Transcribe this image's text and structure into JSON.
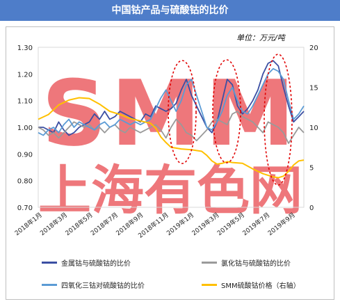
{
  "header": {
    "title": "中国钴产品与硫酸钴的比价"
  },
  "chart_data": {
    "type": "line",
    "unit_note": "单位：万元/吨",
    "x_ticks": [
      "2018年1月",
      "2018年3月",
      "2018年5月",
      "2018年7月",
      "2018年9月",
      "2018年11月",
      "2019年1月",
      "2019年3月",
      "2019年5月",
      "2019年7月",
      "2019年9月"
    ],
    "y_left": {
      "ylim": [
        0.7,
        1.3
      ],
      "ticks": [
        "0.70",
        "0.80",
        "0.90",
        "1.00",
        "1.10",
        "1.20",
        "1.30"
      ]
    },
    "y_right": {
      "ylim": [
        0,
        20
      ],
      "ticks": [
        "0",
        "5",
        "10",
        "15",
        "20"
      ]
    },
    "watermark": {
      "top": "SMM",
      "bottom": "上海有色网"
    },
    "series": [
      {
        "name": "金属钴与硫酸钴的比价",
        "color": "#3b4fa3",
        "axis": "left",
        "points": [
          [
            0,
            1.0
          ],
          [
            1,
            1.0
          ],
          [
            2,
            0.99
          ],
          [
            3,
            0.98
          ],
          [
            4,
            1.02
          ],
          [
            5,
            0.99
          ],
          [
            6,
            0.97
          ],
          [
            7,
            0.98
          ],
          [
            8,
            1.0
          ],
          [
            9,
            1.01
          ],
          [
            10,
            1.02
          ],
          [
            11,
            1.05
          ],
          [
            12,
            1.03
          ],
          [
            13,
            1.06
          ],
          [
            14,
            1.03
          ],
          [
            15,
            1.04
          ],
          [
            16,
            1.06
          ],
          [
            17,
            1.05
          ],
          [
            18,
            1.04
          ],
          [
            19,
            1.03
          ],
          [
            20,
            1.02
          ],
          [
            21,
            1.05
          ],
          [
            22,
            1.04
          ],
          [
            23,
            1.08
          ],
          [
            24,
            1.07
          ],
          [
            25,
            1.06
          ],
          [
            26,
            1.07
          ],
          [
            27,
            1.09
          ],
          [
            28,
            1.14
          ],
          [
            29,
            1.18
          ],
          [
            30,
            1.12
          ],
          [
            31,
            1.08
          ],
          [
            32,
            1.04
          ],
          [
            33,
            1.0
          ],
          [
            34,
            0.98
          ],
          [
            35,
            1.02
          ],
          [
            36,
            1.1
          ],
          [
            37,
            1.18
          ],
          [
            38,
            1.16
          ],
          [
            39,
            1.08
          ],
          [
            40,
            1.05
          ],
          [
            41,
            1.07
          ],
          [
            42,
            1.1
          ],
          [
            43,
            1.14
          ],
          [
            44,
            1.2
          ],
          [
            45,
            1.24
          ],
          [
            46,
            1.25
          ],
          [
            47,
            1.23
          ],
          [
            48,
            1.15
          ],
          [
            49,
            1.08
          ],
          [
            50,
            1.02
          ],
          [
            51,
            1.04
          ],
          [
            52,
            1.06
          ]
        ]
      },
      {
        "name": "氯化钴与硫酸钴的比价",
        "color": "#9a9a9a",
        "axis": "left",
        "points": [
          [
            0,
            1.0
          ],
          [
            1,
            0.99
          ],
          [
            2,
            0.97
          ],
          [
            3,
            0.98
          ],
          [
            4,
            0.96
          ],
          [
            5,
            0.98
          ],
          [
            6,
            1.0
          ],
          [
            7,
            1.02
          ],
          [
            8,
            1.01
          ],
          [
            9,
            1.0
          ],
          [
            10,
            1.01
          ],
          [
            11,
            0.99
          ],
          [
            12,
            1.0
          ],
          [
            13,
            0.98
          ],
          [
            14,
            1.0
          ],
          [
            15,
            1.01
          ],
          [
            16,
            0.99
          ],
          [
            17,
            0.98
          ],
          [
            18,
            1.0
          ],
          [
            19,
            0.99
          ],
          [
            20,
            0.98
          ],
          [
            21,
            0.99
          ],
          [
            22,
            1.0
          ],
          [
            23,
            1.01
          ],
          [
            24,
            0.99
          ],
          [
            25,
            0.96
          ],
          [
            26,
            1.0
          ],
          [
            27,
            1.03
          ],
          [
            28,
            1.01
          ],
          [
            29,
            0.98
          ],
          [
            30,
            0.97
          ],
          [
            31,
            0.95
          ],
          [
            32,
            0.97
          ],
          [
            33,
            0.99
          ],
          [
            34,
            1.02
          ],
          [
            35,
            1.03
          ],
          [
            36,
            1.02
          ],
          [
            37,
            1.01
          ],
          [
            38,
            1.05
          ],
          [
            39,
            1.06
          ],
          [
            40,
            1.04
          ],
          [
            41,
            1.03
          ],
          [
            42,
            1.02
          ],
          [
            43,
            1.0
          ],
          [
            44,
            0.98
          ],
          [
            45,
            1.02
          ],
          [
            46,
            1.01
          ],
          [
            47,
            1.0
          ],
          [
            48,
            0.98
          ],
          [
            49,
            0.94
          ],
          [
            50,
            0.97
          ],
          [
            51,
            1.0
          ],
          [
            52,
            0.98
          ]
        ]
      },
      {
        "name": "四氧化三钴对硫酸钴的比价",
        "color": "#5b9bd5",
        "axis": "left",
        "points": [
          [
            0,
            0.98
          ],
          [
            1,
            0.97
          ],
          [
            2,
            0.99
          ],
          [
            3,
            1.0
          ],
          [
            4,
            0.98
          ],
          [
            5,
            1.01
          ],
          [
            6,
            1.03
          ],
          [
            7,
            1.0
          ],
          [
            8,
            1.02
          ],
          [
            9,
            1.01
          ],
          [
            10,
            1.0
          ],
          [
            11,
            0.99
          ],
          [
            12,
            1.01
          ],
          [
            13,
            1.02
          ],
          [
            14,
            1.0
          ],
          [
            15,
            1.01
          ],
          [
            16,
            1.03
          ],
          [
            17,
            1.02
          ],
          [
            18,
            1.01
          ],
          [
            19,
            1.02
          ],
          [
            20,
            1.01
          ],
          [
            21,
            1.02
          ],
          [
            22,
            1.03
          ],
          [
            23,
            1.07
          ],
          [
            24,
            1.11
          ],
          [
            25,
            1.14
          ],
          [
            26,
            1.1
          ],
          [
            27,
            1.06
          ],
          [
            28,
            1.1
          ],
          [
            29,
            1.16
          ],
          [
            30,
            1.18
          ],
          [
            31,
            1.12
          ],
          [
            32,
            1.06
          ],
          [
            33,
            1.0
          ],
          [
            34,
            0.99
          ],
          [
            35,
            1.02
          ],
          [
            36,
            1.06
          ],
          [
            37,
            1.12
          ],
          [
            38,
            1.15
          ],
          [
            39,
            1.1
          ],
          [
            40,
            1.06
          ],
          [
            41,
            1.05
          ],
          [
            42,
            1.08
          ],
          [
            43,
            1.12
          ],
          [
            44,
            1.16
          ],
          [
            45,
            1.2
          ],
          [
            46,
            1.22
          ],
          [
            47,
            1.21
          ],
          [
            48,
            1.18
          ],
          [
            49,
            1.1
          ],
          [
            50,
            1.03
          ],
          [
            51,
            1.05
          ],
          [
            52,
            1.08
          ]
        ]
      },
      {
        "name": "SMM硫酸钴价格（右轴）",
        "color": "#ffc000",
        "axis": "right",
        "points": [
          [
            0,
            11.0
          ],
          [
            2,
            11.6
          ],
          [
            4,
            12.8
          ],
          [
            6,
            13.4
          ],
          [
            8,
            13.7
          ],
          [
            10,
            13.6
          ],
          [
            12,
            12.9
          ],
          [
            14,
            12.0
          ],
          [
            16,
            11.6
          ],
          [
            18,
            11.1
          ],
          [
            20,
            10.8
          ],
          [
            22,
            10.5
          ],
          [
            23,
            9.9
          ],
          [
            24,
            8.8
          ],
          [
            25,
            8.1
          ],
          [
            26,
            7.5
          ],
          [
            27,
            7.4
          ],
          [
            28,
            7.3
          ],
          [
            30,
            7.2
          ],
          [
            32,
            7.0
          ],
          [
            33,
            6.5
          ],
          [
            34,
            5.8
          ],
          [
            35,
            5.4
          ],
          [
            36,
            5.5
          ],
          [
            37,
            5.7
          ],
          [
            38,
            5.6
          ],
          [
            40,
            5.5
          ],
          [
            42,
            4.8
          ],
          [
            44,
            4.2
          ],
          [
            46,
            3.8
          ],
          [
            47,
            3.7
          ],
          [
            48,
            3.9
          ],
          [
            49,
            4.5
          ],
          [
            50,
            5.3
          ],
          [
            51,
            5.8
          ],
          [
            52,
            5.9
          ]
        ]
      }
    ]
  }
}
